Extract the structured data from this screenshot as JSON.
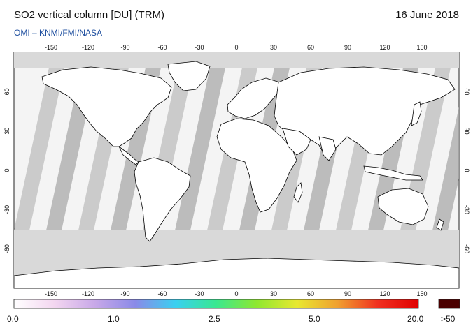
{
  "header": {
    "title": "SO2 vertical column [DU] (TRM)",
    "date": "16 June 2018",
    "credit": "OMI  –  KNMI/FMI/NASA"
  },
  "map": {
    "lon_ticks": [
      "-150",
      "-120",
      "-90",
      "-60",
      "-30",
      "0",
      "30",
      "60",
      "90",
      "120",
      "150"
    ],
    "lat_ticks_left": [
      "60",
      "30",
      "0",
      "-30",
      "-60"
    ],
    "lat_ticks_right": [
      "60",
      "30",
      "0",
      "-30",
      "-60"
    ],
    "colors": {
      "ocean_band": "#d9d9d9",
      "swath": "#a9a9a9",
      "land": "#ffffff",
      "coast": "#000000"
    }
  },
  "colorbar": {
    "labels": [
      "0.0",
      "1.0",
      "2.5",
      "5.0",
      "20.0"
    ],
    "overflow_label": ">50",
    "overflow_color": "#4a0000",
    "stops": [
      "#ffffff",
      "#f3d6f0",
      "#c8a8e8",
      "#8a8ae8",
      "#3ad0f0",
      "#3ae890",
      "#8ee830",
      "#e8e830",
      "#f0a030",
      "#f03020",
      "#e00000"
    ]
  }
}
